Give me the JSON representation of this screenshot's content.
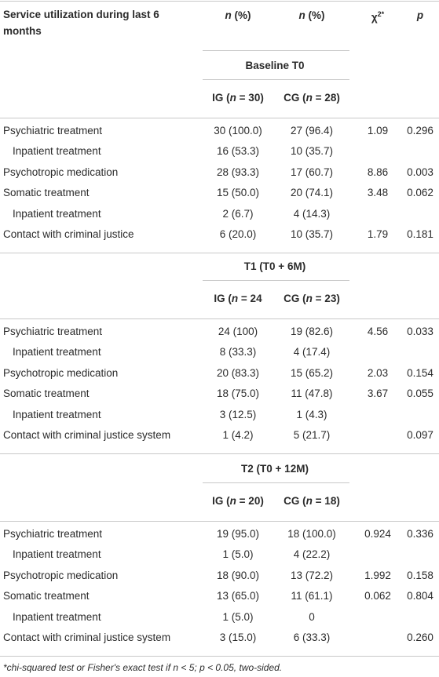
{
  "header": {
    "label": "Service utilization during last 6 months",
    "col_ig": [
      "n",
      " (%)"
    ],
    "col_cg": [
      "n",
      " (%)"
    ],
    "col_chi": [
      "χ",
      "2*"
    ],
    "col_p": "p"
  },
  "sections": [
    {
      "title": "Baseline T0",
      "ig": [
        "IG (",
        "n",
        " = 30)"
      ],
      "cg": [
        "CG (",
        "n",
        " = 28)"
      ],
      "rows": [
        {
          "label": "Psychiatric treatment",
          "ig": "30 (100.0)",
          "cg": "27 (96.4)",
          "chi": "1.09",
          "p": "0.296"
        },
        {
          "label": "Inpatient treatment",
          "indent": true,
          "ig": "16 (53.3)",
          "cg": "10 (35.7)"
        },
        {
          "label": "Psychotropic medication",
          "ig": "28 (93.3)",
          "cg": "17 (60.7)",
          "chi": "8.86",
          "p": "0.003"
        },
        {
          "label": "Somatic treatment",
          "ig": "15 (50.0)",
          "cg": "20 (74.1)",
          "chi": "3.48",
          "p": "0.062"
        },
        {
          "label": "Inpatient treatment",
          "indent": true,
          "ig": "2 (6.7)",
          "cg": "4 (14.3)"
        },
        {
          "label": "Contact with criminal justice",
          "ig": "6 (20.0)",
          "cg": "10 (35.7)",
          "chi": "1.79",
          "p": "0.181"
        }
      ]
    },
    {
      "title": "T1 (T0 + 6M)",
      "ig": [
        "IG (",
        "n",
        " = 24"
      ],
      "cg": [
        "CG (",
        "n",
        " = 23)"
      ],
      "rows": [
        {
          "label": "Psychiatric treatment",
          "ig": "24 (100)",
          "cg": "19 (82.6)",
          "chi": "4.56",
          "p": "0.033"
        },
        {
          "label": "Inpatient treatment",
          "indent": true,
          "ig": "8 (33.3)",
          "cg": "4 (17.4)"
        },
        {
          "label": "Psychotropic medication",
          "ig": "20 (83.3)",
          "cg": "15 (65.2)",
          "chi": "2.03",
          "p": "0.154"
        },
        {
          "label": "Somatic treatment",
          "ig": "18 (75.0)",
          "cg": "11 (47.8)",
          "chi": "3.67",
          "p": "0.055"
        },
        {
          "label": "Inpatient treatment",
          "indent": true,
          "ig": "3 (12.5)",
          "cg": "1 (4.3)"
        },
        {
          "label": "Contact with criminal justice system",
          "ig": "1 (4.2)",
          "cg": "5 (21.7)",
          "p": "0.097"
        }
      ]
    },
    {
      "title": "T2 (T0 + 12M)",
      "ig": [
        "IG (",
        "n",
        " = 20)"
      ],
      "cg": [
        "CG (",
        "n",
        " = 18)"
      ],
      "rows": [
        {
          "label": "Psychiatric treatment",
          "ig": "19 (95.0)",
          "cg": "18 (100.0)",
          "chi": "0.924",
          "p": "0.336"
        },
        {
          "label": "Inpatient treatment",
          "indent": true,
          "ig": "1 (5.0)",
          "cg": "4 (22.2)"
        },
        {
          "label": "Psychotropic medication",
          "ig": "18 (90.0)",
          "cg": "13 (72.2)",
          "chi": "1.992",
          "p": "0.158"
        },
        {
          "label": "Somatic treatment",
          "ig": "13 (65.0)",
          "cg": "11 (61.1)",
          "chi": "0.062",
          "p": "0.804"
        },
        {
          "label": "Inpatient treatment",
          "indent": true,
          "ig": "1 (5.0)",
          "cg": "0"
        },
        {
          "label": "Contact with criminal justice system",
          "ig": "3 (15.0)",
          "cg": "6 (33.3)",
          "p": "0.260"
        }
      ]
    }
  ],
  "footnote": "*chi-squared test or Fisher's exact test if n < 5; p < 0.05, two-sided."
}
